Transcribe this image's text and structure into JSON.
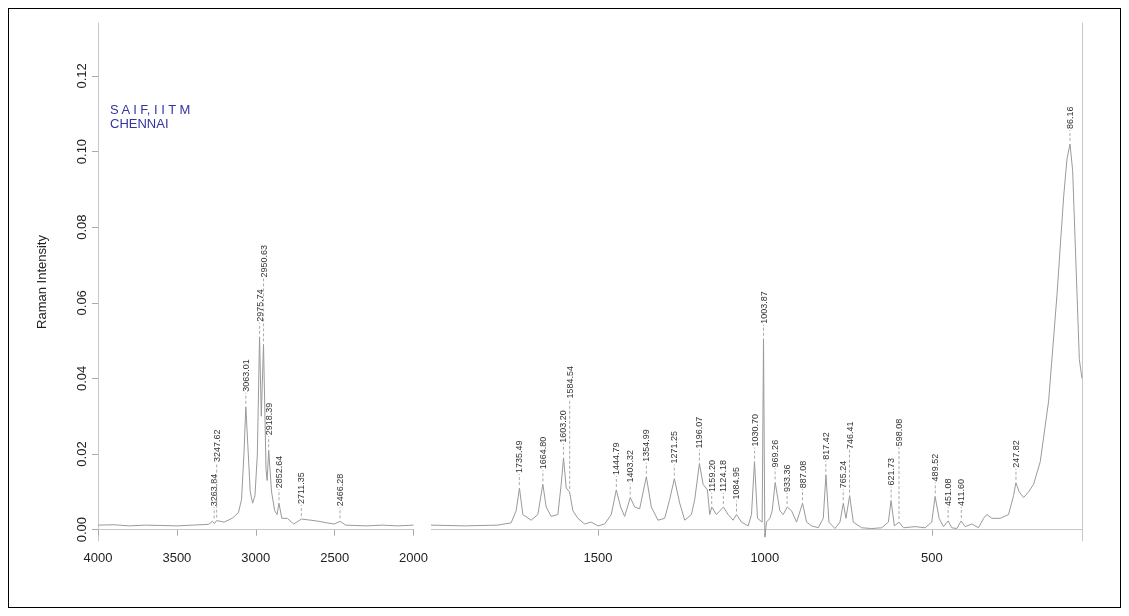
{
  "chart_data": [
    {
      "type": "line",
      "ylabel": "Raman Intensity",
      "color": "#9a9a9a",
      "x": [
        4000,
        3900,
        3800,
        3700,
        3600,
        3500,
        3400,
        3300,
        3274,
        3262,
        3248,
        3200,
        3150,
        3110,
        3090,
        3075,
        3063,
        3050,
        3035,
        3020,
        3005,
        2990,
        2976,
        2965,
        2951,
        2935,
        2928,
        2918,
        2900,
        2880,
        2865,
        2853,
        2835,
        2800,
        2760,
        2740,
        2711,
        2650,
        2600,
        2550,
        2500,
        2466,
        2430,
        2300,
        2200,
        2100,
        2000
      ],
      "values": [
        0.0012,
        0.0013,
        0.001,
        0.0012,
        0.0011,
        0.001,
        0.0012,
        0.0014,
        0.0022,
        0.0016,
        0.0024,
        0.002,
        0.003,
        0.0045,
        0.008,
        0.02,
        0.0325,
        0.022,
        0.01,
        0.007,
        0.009,
        0.02,
        0.051,
        0.03,
        0.049,
        0.016,
        0.013,
        0.021,
        0.01,
        0.005,
        0.004,
        0.007,
        0.003,
        0.003,
        0.0015,
        0.002,
        0.0028,
        0.0025,
        0.0022,
        0.0018,
        0.0015,
        0.0022,
        0.0012,
        0.001,
        0.0012,
        0.001,
        0.0012
      ],
      "xlim": [
        4000,
        2000
      ],
      "xticks": [
        4000,
        3500,
        3000,
        2500,
        2000
      ],
      "ylim": [
        -0.003,
        0.134
      ],
      "yticks": [
        {
          "value": 0,
          "label": "0.00"
        },
        {
          "value": 0.02,
          "label": "0.02"
        },
        {
          "value": 0.04,
          "label": "0.04"
        },
        {
          "value": 0.06,
          "label": "0.06"
        },
        {
          "value": 0.08,
          "label": "0.08"
        },
        {
          "value": 0.1,
          "label": "0.10"
        },
        {
          "value": 0.12,
          "label": "0.12"
        }
      ],
      "annotations": [
        "S A I F, I I T M",
        "CHENNAI",
        {
          "text": "3263.84",
          "x": 3263.84,
          "y": 0.0022
        },
        {
          "text": "3247.62",
          "x": 3247.62,
          "y": 0.0024
        },
        {
          "text": "3063.01",
          "x": 3063.01,
          "y": 0.0325
        },
        {
          "text": "2975.74",
          "x": 2975.74,
          "y": 0.051
        },
        {
          "text": "2950.63",
          "x": 2950.63,
          "y": 0.049
        },
        {
          "text": "2918.39",
          "x": 2918.39,
          "y": 0.021
        },
        {
          "text": "2852.64",
          "x": 2852.64,
          "y": 0.007
        },
        {
          "text": "2711.35",
          "x": 2711.35,
          "y": 0.0028
        },
        {
          "text": "2466.28",
          "x": 2466.28,
          "y": 0.0022
        }
      ]
    },
    {
      "type": "line",
      "color": "#9a9a9a",
      "tick_labels": "x",
      "x": [
        2000,
        1900,
        1800,
        1760,
        1745,
        1735,
        1725,
        1700,
        1680,
        1665,
        1655,
        1640,
        1620,
        1610,
        1603,
        1595,
        1585,
        1575,
        1560,
        1540,
        1520,
        1500,
        1480,
        1460,
        1445,
        1432,
        1420,
        1403,
        1390,
        1375,
        1355,
        1340,
        1320,
        1300,
        1285,
        1271,
        1255,
        1240,
        1220,
        1210,
        1196,
        1185,
        1172,
        1165,
        1159,
        1145,
        1124,
        1110,
        1095,
        1085,
        1070,
        1050,
        1040,
        1031,
        1022,
        1008,
        1004,
        1000,
        995,
        985,
        978,
        969,
        955,
        945,
        933,
        920,
        905,
        887,
        875,
        860,
        840,
        825,
        817,
        808,
        790,
        775,
        765,
        757,
        746,
        735,
        710,
        680,
        650,
        630,
        622,
        612,
        598,
        585,
        550,
        520,
        500,
        490,
        478,
        465,
        451,
        440,
        425,
        412,
        400,
        380,
        360,
        345,
        335,
        320,
        295,
        270,
        255,
        248,
        238,
        225,
        210,
        195,
        175,
        150,
        125,
        105,
        95,
        86,
        78,
        68,
        58,
        50
      ],
      "values": [
        0.0012,
        0.001,
        0.0012,
        0.0018,
        0.005,
        0.011,
        0.004,
        0.0025,
        0.004,
        0.012,
        0.006,
        0.0035,
        0.004,
        0.012,
        0.019,
        0.011,
        0.01,
        0.005,
        0.003,
        0.0015,
        0.002,
        0.001,
        0.0015,
        0.004,
        0.0105,
        0.006,
        0.0035,
        0.0085,
        0.006,
        0.0055,
        0.014,
        0.006,
        0.0025,
        0.003,
        0.008,
        0.0135,
        0.007,
        0.0025,
        0.004,
        0.008,
        0.0175,
        0.012,
        0.0105,
        0.004,
        0.006,
        0.004,
        0.006,
        0.004,
        0.0025,
        0.004,
        0.002,
        0.001,
        0.004,
        0.018,
        0.003,
        0.002,
        0.0505,
        -0.002,
        0.002,
        0.003,
        0.005,
        0.0125,
        0.005,
        0.004,
        0.006,
        0.005,
        0.002,
        0.007,
        0.002,
        0.001,
        0.0005,
        0.003,
        0.0145,
        0.002,
        0.0003,
        0.002,
        0.007,
        0.003,
        0.009,
        0.002,
        0.0005,
        0.0003,
        0.0005,
        0.002,
        0.0077,
        0.001,
        0.002,
        0.0005,
        0.0008,
        0.0005,
        0.002,
        0.0088,
        0.003,
        0.0008,
        0.0023,
        0.0005,
        0.0003,
        0.0023,
        0.0008,
        0.0015,
        0.0005,
        0.003,
        0.004,
        0.003,
        0.003,
        0.004,
        0.009,
        0.0124,
        0.01,
        0.0085,
        0.01,
        0.012,
        0.018,
        0.034,
        0.062,
        0.088,
        0.098,
        0.102,
        0.095,
        0.07,
        0.045,
        0.04
      ],
      "xlim": [
        2000,
        50
      ],
      "xticks": [
        1500,
        1000,
        500
      ],
      "ylim": [
        -0.003,
        0.134
      ],
      "annotations": [
        {
          "text": "1735.49",
          "x": 1735.49,
          "y": 0.011
        },
        {
          "text": "1664.80",
          "x": 1664.8,
          "y": 0.012
        },
        {
          "text": "1603.20",
          "x": 1603.2,
          "y": 0.019
        },
        {
          "text": "1584.54",
          "x": 1584.54,
          "y": 0.01
        },
        {
          "text": "1444.79",
          "x": 1444.79,
          "y": 0.0105
        },
        {
          "text": "1403.32",
          "x": 1403.32,
          "y": 0.0085
        },
        {
          "text": "1354.99",
          "x": 1354.99,
          "y": 0.014
        },
        {
          "text": "1271.25",
          "x": 1271.25,
          "y": 0.0135
        },
        {
          "text": "1196.07",
          "x": 1196.07,
          "y": 0.0175
        },
        {
          "text": "1159.20",
          "x": 1159.2,
          "y": 0.006
        },
        {
          "text": "1124.18",
          "x": 1124.18,
          "y": 0.006
        },
        {
          "text": "1084.95",
          "x": 1084.95,
          "y": 0.004
        },
        {
          "text": "1030.70",
          "x": 1030.7,
          "y": 0.018
        },
        {
          "text": "1003.87",
          "x": 1003.87,
          "y": 0.0505
        },
        {
          "text": "969.26",
          "x": 969.26,
          "y": 0.0125
        },
        {
          "text": "933.36",
          "x": 933.36,
          "y": 0.006
        },
        {
          "text": "887.08",
          "x": 887.08,
          "y": 0.007
        },
        {
          "text": "817.42",
          "x": 817.42,
          "y": 0.0145
        },
        {
          "text": "765.24",
          "x": 765.24,
          "y": 0.007
        },
        {
          "text": "746.41",
          "x": 746.41,
          "y": 0.009
        },
        {
          "text": "621.73",
          "x": 621.73,
          "y": 0.0077
        },
        {
          "text": "598.08",
          "x": 598.08,
          "y": 0.002
        },
        {
          "text": "489.52",
          "x": 489.52,
          "y": 0.0088
        },
        {
          "text": "451.08",
          "x": 451.08,
          "y": 0.0023
        },
        {
          "text": "411.60",
          "x": 411.6,
          "y": 0.0023
        },
        {
          "text": "247.82",
          "x": 247.82,
          "y": 0.0124
        },
        {
          "text": "86.16",
          "x": 86.16,
          "y": 0.102
        }
      ]
    }
  ]
}
